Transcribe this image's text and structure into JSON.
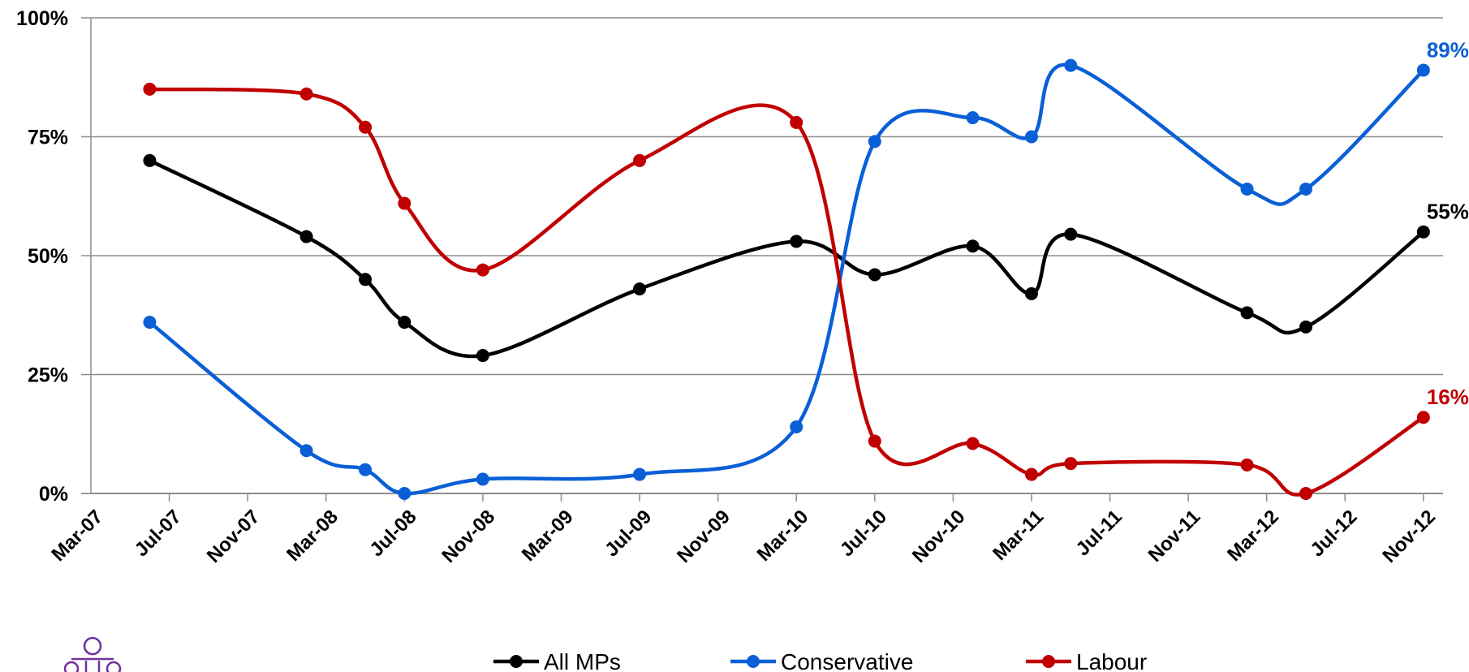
{
  "chart_data": {
    "type": "line",
    "title": "",
    "xlabel": "",
    "ylabel": "",
    "ylim": [
      0,
      100
    ],
    "y_ticks": [
      "0%",
      "25%",
      "50%",
      "75%",
      "100%"
    ],
    "y_tick_values": [
      0,
      25,
      50,
      75,
      100
    ],
    "x_ticks": [
      "Mar-07",
      "Jul-07",
      "Nov-07",
      "Mar-08",
      "Jul-08",
      "Nov-08",
      "Mar-09",
      "Jul-09",
      "Nov-09",
      "Mar-10",
      "Jul-10",
      "Nov-10",
      "Mar-11",
      "Jul-11",
      "Nov-11",
      "Mar-12",
      "Jul-12",
      "Nov-12"
    ],
    "grid": true,
    "legend_position": "bottom",
    "x": [
      "2007-06",
      "2008-02",
      "2008-05",
      "2008-07",
      "2008-11",
      "2009-07",
      "2010-03",
      "2010-07",
      "2010-12",
      "2011-03",
      "2011-05",
      "2012-02",
      "2012-05",
      "2012-11"
    ],
    "series": [
      {
        "name": "All MPs",
        "color": "#000000",
        "values": [
          70,
          54,
          45,
          36,
          29,
          43,
          53,
          46,
          52,
          42,
          54.5,
          38,
          35,
          55
        ],
        "end_label": "55%"
      },
      {
        "name": "Conservative",
        "color": "#0a5fd6",
        "values": [
          36,
          9,
          5,
          0,
          3,
          4,
          14,
          74,
          79,
          75,
          90,
          64,
          64,
          89
        ],
        "end_label": "89%"
      },
      {
        "name": "Labour",
        "color": "#c00000",
        "values": [
          85,
          84,
          77,
          61,
          47,
          70,
          78,
          11,
          10.5,
          4,
          6.3,
          6,
          0,
          16
        ],
        "end_label": "16%"
      }
    ]
  },
  "icon": "people-group-icon"
}
